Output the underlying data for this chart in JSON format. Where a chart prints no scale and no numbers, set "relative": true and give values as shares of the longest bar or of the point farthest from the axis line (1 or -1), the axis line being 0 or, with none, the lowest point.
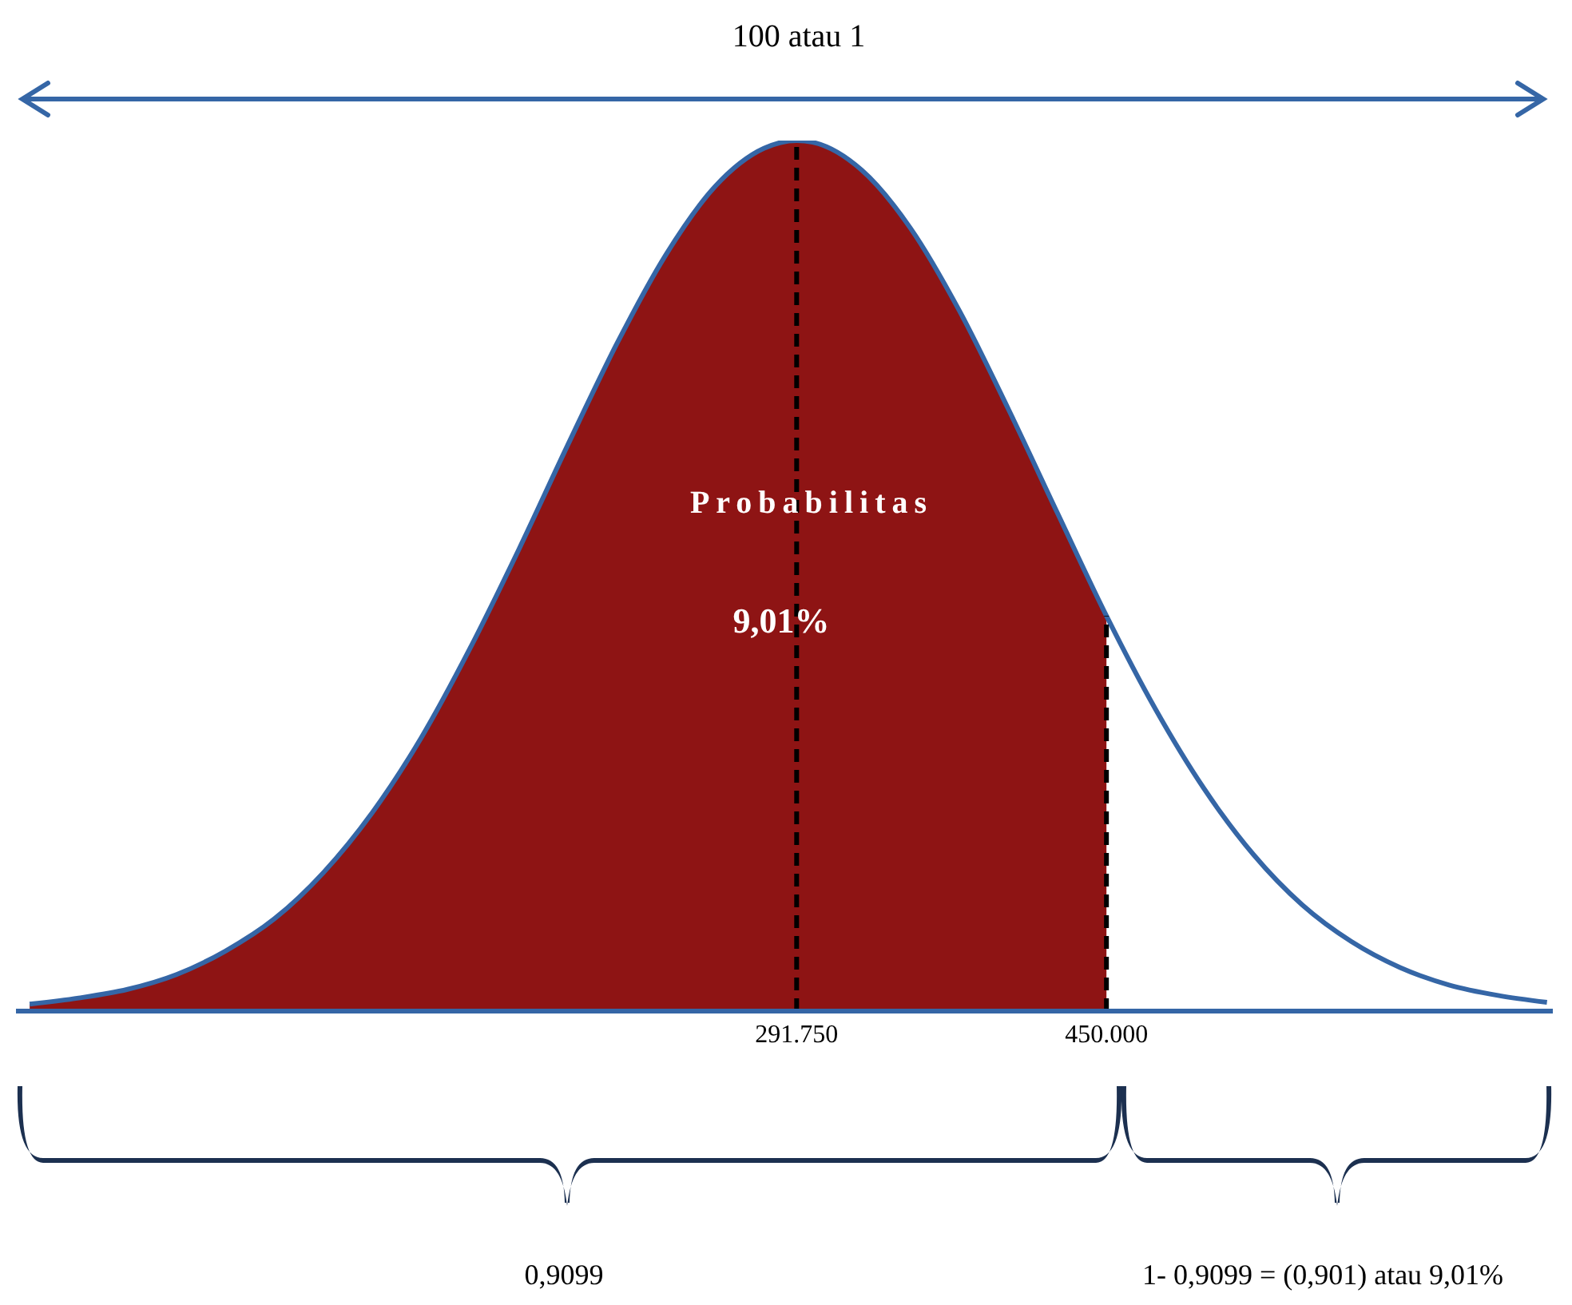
{
  "chart_data": {
    "type": "line",
    "relative": true,
    "x": [
      -100000,
      -75000,
      -50000,
      -25000,
      0,
      25000,
      50000,
      75000,
      100000,
      125000,
      150000,
      175000,
      200000,
      225000,
      250000,
      275000,
      291750,
      300000,
      325000,
      350000,
      375000,
      400000,
      425000,
      450000,
      475000,
      500000,
      525000,
      550000,
      575000,
      600000,
      625000,
      650000,
      675000
    ],
    "series": [
      {
        "type": "area",
        "color": "#8e1414",
        "values": [
          0.008,
          0.015,
          0.025,
          0.042,
          0.069,
          0.106,
          0.159,
          0.228,
          0.314,
          0.417,
          0.531,
          0.651,
          0.767,
          0.869,
          0.947,
          0.991,
          1,
          0.998,
          0.966,
          0.899,
          0.804,
          0.691,
          0.572,
          0.454,
          null,
          null,
          null,
          null,
          null,
          null,
          null,
          null,
          null
        ]
      },
      {
        "color": "#3566a6",
        "values": [
          0.008,
          0.015,
          0.025,
          0.042,
          0.069,
          0.106,
          0.159,
          0.228,
          0.314,
          0.417,
          0.531,
          0.651,
          0.767,
          0.869,
          0.947,
          0.991,
          1,
          0.998,
          0.966,
          0.899,
          0.804,
          0.691,
          0.572,
          0.454,
          0.347,
          0.255,
          0.18,
          0.122,
          0.08,
          0.05,
          0.03,
          0.018,
          0.01
        ]
      }
    ],
    "xlim": [
      -107000,
      678000
    ],
    "xticks": [
      {
        "value": 291750,
        "label": "291.750"
      },
      {
        "value": 450000,
        "label": "450.000"
      }
    ],
    "tick_labels": "x",
    "grid": false,
    "legend": false,
    "marker": "none",
    "ref_lines": [
      {
        "axis": "x",
        "value": 291750,
        "color": "#000000",
        "line_style": "dashed"
      },
      {
        "axis": "x",
        "value": 450000,
        "color": "#000000",
        "line_style": "dashed"
      }
    ],
    "annotations": [
      "100 atau 1",
      "Probabilitas",
      "9,01%",
      "0,9099",
      "1- 0,9099 = (0,901) atau 9,01%"
    ]
  }
}
